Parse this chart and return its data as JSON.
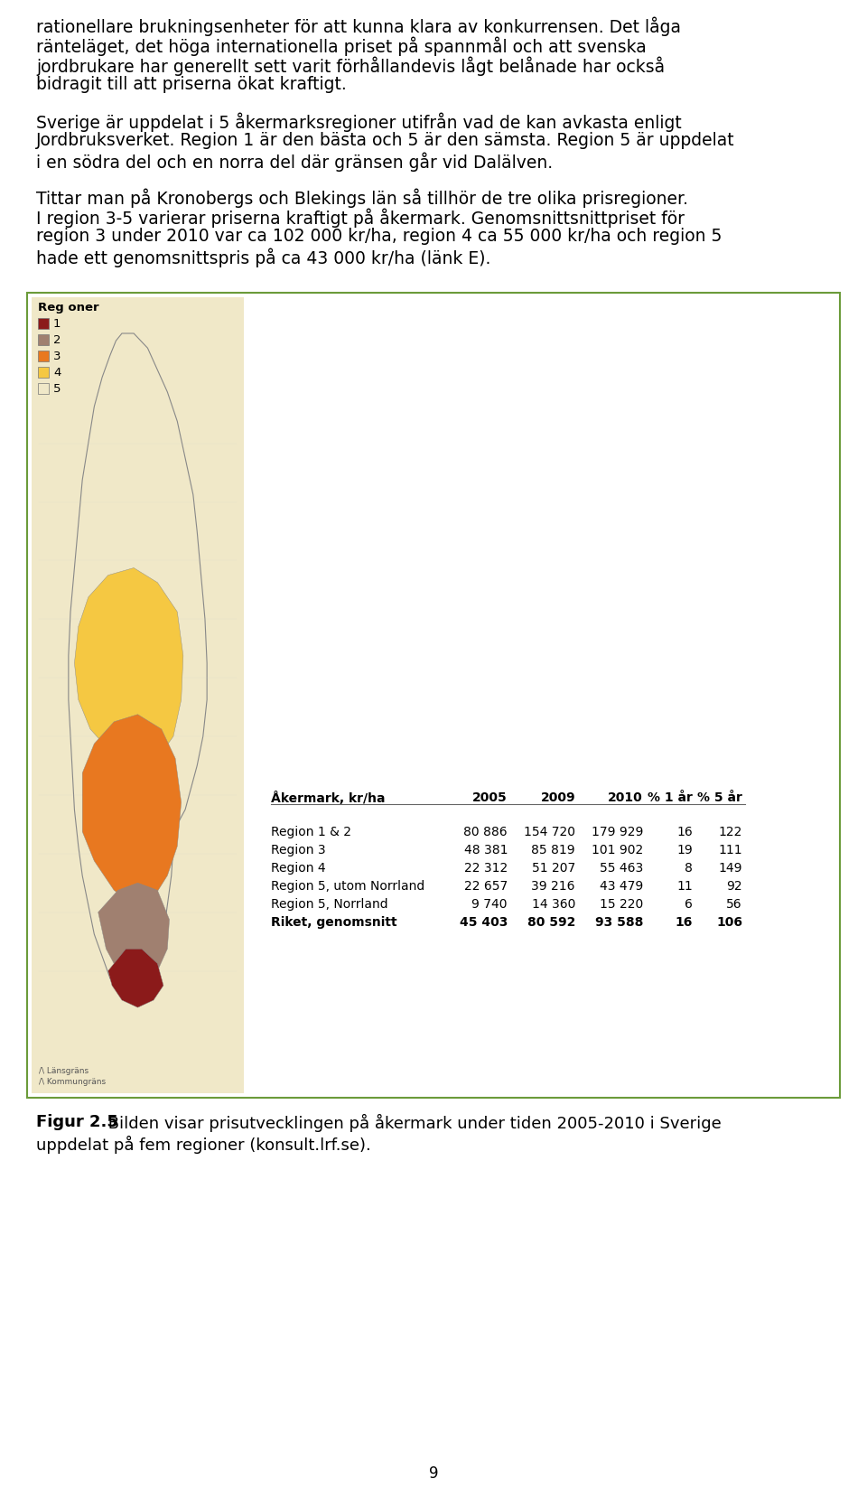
{
  "background_color": "#ffffff",
  "page_number": "9",
  "paragraphs": [
    "rationellare brukningsenheter för att kunna klara av konkurrensen. Det låga ränteläget, det höga internationella priset på spannmål och att svenska jordbrukare har generellt sett varit förhållandevis lågt belånade har också bidragit till att priserna ökat kraftigt.",
    "Sverige är uppdelat i 5 åkermarksregioner utifrån vad de kan avkasta enligt Jordbruksverket. Region 1 är den bästa och 5 är den sämsta. Region 5 är uppdelat i en södra del och en norra del där gränsen går vid Dalälven.",
    "Tittar man på Kronobergs och Blekings län så tillhör de tre olika prisregioner. I region 3-5  varierar priserna kraftigt på åkermark. Genomsnittsnittpriset för region 3 under 2010 var ca 102 000 kr/ha, region 4 ca 55 000 kr/ha och region 5 hade ett genomsnittspris på ca 43 000 kr/ha (länk E)."
  ],
  "figure_caption_bold": "Figur 2.5",
  "figure_caption_normal": " Bilden visar prisutvecklingen på åkermark under tiden 2005-2010 i Sverige uppdelat på fem regioner (konsult.lrf.se).",
  "legend_title": "Reg oner",
  "legend_items": [
    {
      "label": "1",
      "color": "#8B1A1A"
    },
    {
      "label": "2",
      "color": "#A08070"
    },
    {
      "label": "3",
      "color": "#E87820"
    },
    {
      "label": "4",
      "color": "#F5C842"
    },
    {
      "label": "5",
      "color": "#F0E8C8"
    }
  ],
  "table_header": [
    "Åkermark, kr/ha",
    "2005",
    "2009",
    "2010",
    "% 1 år",
    "% 5 år"
  ],
  "table_rows": [
    [
      "Region 1 & 2",
      "80 886",
      "154 720",
      "179 929",
      "16",
      "122"
    ],
    [
      "Region 3",
      "48 381",
      "85 819",
      "101 902",
      "19",
      "111"
    ],
    [
      "Region 4",
      "22 312",
      "51 207",
      "55 463",
      "8",
      "149"
    ],
    [
      "Region 5, utom Norrland",
      "22 657",
      "39 216",
      "43 479",
      "11",
      "92"
    ],
    [
      "Region 5, Norrland",
      "9 740",
      "14 360",
      "15 220",
      "6",
      "56"
    ],
    [
      "Riket, genomsnitt",
      "45 403",
      "80 592",
      "93 588",
      "16",
      "106"
    ]
  ],
  "box_border_color": "#6B9B3A",
  "text_color": "#000000",
  "font_size_body": 13.5,
  "font_size_caption": 13.0,
  "font_size_table": 10.0,
  "font_size_legend": 9.5
}
